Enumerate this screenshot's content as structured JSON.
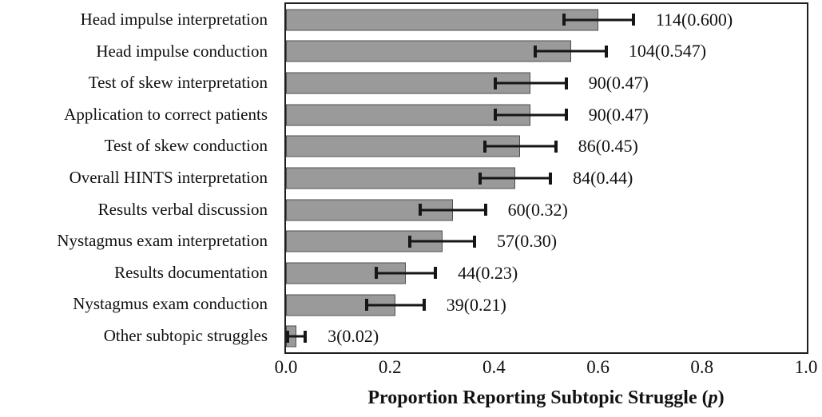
{
  "chart_data": {
    "type": "bar",
    "orientation": "horizontal",
    "title": "",
    "xlabel": {
      "prefix": "Proportion Reporting Subtopic Struggle (",
      "italic": "p",
      "suffix": ")"
    },
    "xlim": [
      0.0,
      1.0
    ],
    "xtick_values": [
      0.0,
      0.2,
      0.4,
      0.6,
      0.8,
      1.0
    ],
    "xtick_labels": [
      "0.0",
      "0.2",
      "0.4",
      "0.6",
      "0.8",
      "1.0"
    ],
    "grid": false,
    "legend": null,
    "error_bars": true,
    "colors": {
      "bar_fill": "#9a9a9a",
      "bar_border": "#4f4f4f",
      "error_bar": "#161616",
      "frame": "#1f1f1f",
      "text": "#111111",
      "background": "#ffffff"
    },
    "rows": [
      {
        "label": "Head impulse interpretation",
        "count": 114,
        "value": 0.6,
        "error": 0.07,
        "annotation": "114(0.600)"
      },
      {
        "label": "Head impulse conduction",
        "count": 104,
        "value": 0.547,
        "error": 0.071,
        "annotation": "104(0.547)"
      },
      {
        "label": "Test of skew interpretation",
        "count": 90,
        "value": 0.47,
        "error": 0.071,
        "annotation": "90(0.47)"
      },
      {
        "label": "Application to correct patients",
        "count": 90,
        "value": 0.47,
        "error": 0.071,
        "annotation": "90(0.47)"
      },
      {
        "label": "Test of skew conduction",
        "count": 86,
        "value": 0.45,
        "error": 0.071,
        "annotation": "86(0.45)"
      },
      {
        "label": "Overall HINTS interpretation",
        "count": 84,
        "value": 0.44,
        "error": 0.071,
        "annotation": "84(0.44)"
      },
      {
        "label": "Results verbal discussion",
        "count": 60,
        "value": 0.32,
        "error": 0.066,
        "annotation": "60(0.32)"
      },
      {
        "label": "Nystagmus exam interpretation",
        "count": 57,
        "value": 0.3,
        "error": 0.065,
        "annotation": "57(0.30)"
      },
      {
        "label": "Results documentation",
        "count": 44,
        "value": 0.23,
        "error": 0.06,
        "annotation": "44(0.23)"
      },
      {
        "label": "Nystagmus exam conduction",
        "count": 39,
        "value": 0.21,
        "error": 0.058,
        "annotation": "39(0.21)"
      },
      {
        "label": "Other subtopic struggles",
        "count": 3,
        "value": 0.02,
        "error": 0.02,
        "annotation": "3(0.02)"
      }
    ]
  }
}
